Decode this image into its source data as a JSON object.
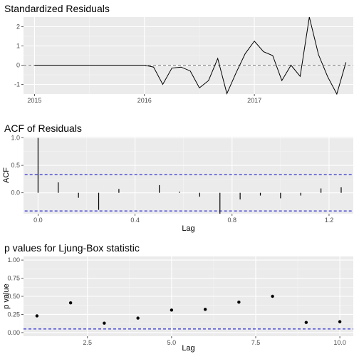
{
  "chart_data": [
    {
      "type": "line",
      "title": "Standardized Residuals",
      "xlabel": "",
      "ylabel": "",
      "xlim": [
        2014.9,
        2017.9
      ],
      "ylim": [
        -1.5,
        2.5
      ],
      "x_ticks": [
        2015,
        2016,
        2017
      ],
      "x_tick_labels": [
        "2015",
        "2016",
        "2017"
      ],
      "y_ticks": [
        -1,
        0,
        1,
        2
      ],
      "y_tick_labels": [
        "-1",
        "0",
        "1",
        "2"
      ],
      "reference_line": {
        "y": 0,
        "style": "dashed",
        "color": "#7f7f7f"
      },
      "grid": true,
      "x": [
        2015.0,
        2015.0833,
        2015.1667,
        2015.25,
        2015.3333,
        2015.4167,
        2015.5,
        2015.5833,
        2015.6667,
        2015.75,
        2015.8333,
        2015.9167,
        2016.0,
        2016.0833,
        2016.1667,
        2016.25,
        2016.3333,
        2016.4167,
        2016.5,
        2016.5833,
        2016.6667,
        2016.75,
        2016.8333,
        2016.9167,
        2017.0,
        2017.0833,
        2017.1667,
        2017.25,
        2017.3333,
        2017.4167,
        2017.5,
        2017.5833,
        2017.6667,
        2017.75,
        2017.8333
      ],
      "values": [
        0,
        0,
        0,
        0,
        0,
        0,
        0,
        0,
        0,
        0,
        0,
        0,
        0,
        -0.1,
        -1.0,
        -0.15,
        -0.1,
        -0.3,
        -1.18,
        -0.8,
        0.35,
        -1.48,
        -0.4,
        0.6,
        1.25,
        0.7,
        0.5,
        -0.8,
        0.0,
        -0.58,
        2.5,
        0.55,
        -0.6,
        -1.5,
        0.15
      ],
      "color": "#000000"
    },
    {
      "type": "bar",
      "title": "ACF of Residuals",
      "xlabel": "Lag",
      "ylabel": "ACF",
      "xlim": [
        -0.06,
        1.3
      ],
      "ylim": [
        -0.38,
        1.02
      ],
      "x_ticks": [
        0.0,
        0.4,
        0.8,
        1.2
      ],
      "x_tick_labels": [
        "0.0",
        "0.4",
        "0.8",
        "1.2"
      ],
      "y_ticks": [
        0.0,
        0.5,
        1.0
      ],
      "y_tick_labels": [
        "0.0",
        "0.5",
        "1.0"
      ],
      "confidence_bounds": [
        0.33,
        -0.33
      ],
      "bound_color": "#0000cc",
      "grid": true,
      "x": [
        0.0,
        0.0833,
        0.1667,
        0.25,
        0.3333,
        0.4167,
        0.5,
        0.5833,
        0.6667,
        0.75,
        0.8333,
        0.9167,
        1.0,
        1.0833,
        1.1667,
        1.25
      ],
      "values": [
        1.0,
        0.19,
        -0.09,
        -0.31,
        0.07,
        0.0,
        0.14,
        0.02,
        -0.07,
        -0.38,
        -0.12,
        -0.05,
        -0.1,
        -0.05,
        0.08,
        0.1
      ],
      "color": "#000000"
    },
    {
      "type": "scatter",
      "title": "p values for Ljung-Box statistic",
      "xlabel": "Lag",
      "ylabel": "p value",
      "xlim": [
        0.6,
        10.4
      ],
      "ylim": [
        -0.05,
        1.05
      ],
      "x_ticks": [
        2.5,
        5.0,
        7.5,
        10.0
      ],
      "x_tick_labels": [
        "2.5",
        "5.0",
        "7.5",
        "10.0"
      ],
      "y_ticks": [
        0.0,
        0.25,
        0.5,
        0.75,
        1.0
      ],
      "y_tick_labels": [
        "0.00",
        "0.25",
        "0.50",
        "0.75",
        "1.00"
      ],
      "reference_line": {
        "y": 0.05,
        "style": "dashed",
        "color": "#0000cc"
      },
      "grid": true,
      "x": [
        1,
        2,
        3,
        4,
        5,
        6,
        7,
        8,
        9,
        10
      ],
      "values": [
        0.23,
        0.41,
        0.13,
        0.2,
        0.31,
        0.32,
        0.42,
        0.5,
        0.14,
        0.15
      ],
      "color": "#000000"
    }
  ]
}
